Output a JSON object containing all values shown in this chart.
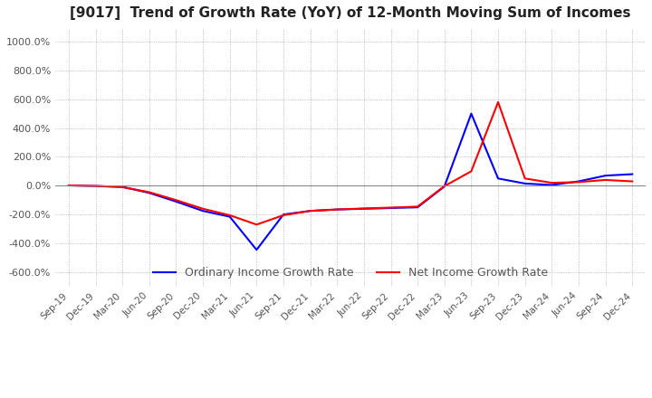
{
  "title": "[9017]  Trend of Growth Rate (YoY) of 12-Month Moving Sum of Incomes",
  "title_fontsize": 11,
  "ylim": [
    -700,
    1100
  ],
  "yticks": [
    -600,
    -400,
    -200,
    0,
    200,
    400,
    600,
    800,
    1000
  ],
  "ytick_labels": [
    "-600.0%",
    "-400.0%",
    "-200.0%",
    "0.0%",
    "200.0%",
    "400.0%",
    "600.0%",
    "800.0%",
    "1000.0%"
  ],
  "legend_labels": [
    "Ordinary Income Growth Rate",
    "Net Income Growth Rate"
  ],
  "line_colors": [
    "#0000FF",
    "#FF0000"
  ],
  "background_color": "#FFFFFF",
  "plot_bg_color": "#FFFFFF",
  "grid_color": "#AAAAAA",
  "x_labels": [
    "Sep-19",
    "Dec-19",
    "Mar-20",
    "Jun-20",
    "Sep-20",
    "Dec-20",
    "Mar-21",
    "Jun-21",
    "Sep-21",
    "Dec-21",
    "Mar-22",
    "Jun-22",
    "Sep-22",
    "Dec-22",
    "Mar-23",
    "Jun-23",
    "Sep-23",
    "Dec-23",
    "Mar-24",
    "Jun-24",
    "Sep-24",
    "Dec-24"
  ],
  "ordinary_income": [
    2,
    -2,
    -8,
    -50,
    -110,
    -175,
    -215,
    -445,
    -200,
    -175,
    -165,
    -160,
    -155,
    -150,
    -5,
    500,
    50,
    15,
    5,
    30,
    70,
    80
  ],
  "net_income": [
    2,
    -2,
    -10,
    -45,
    -100,
    -160,
    -205,
    -270,
    -205,
    -175,
    -165,
    -158,
    -152,
    -145,
    -3,
    100,
    580,
    50,
    20,
    25,
    40,
    30
  ]
}
